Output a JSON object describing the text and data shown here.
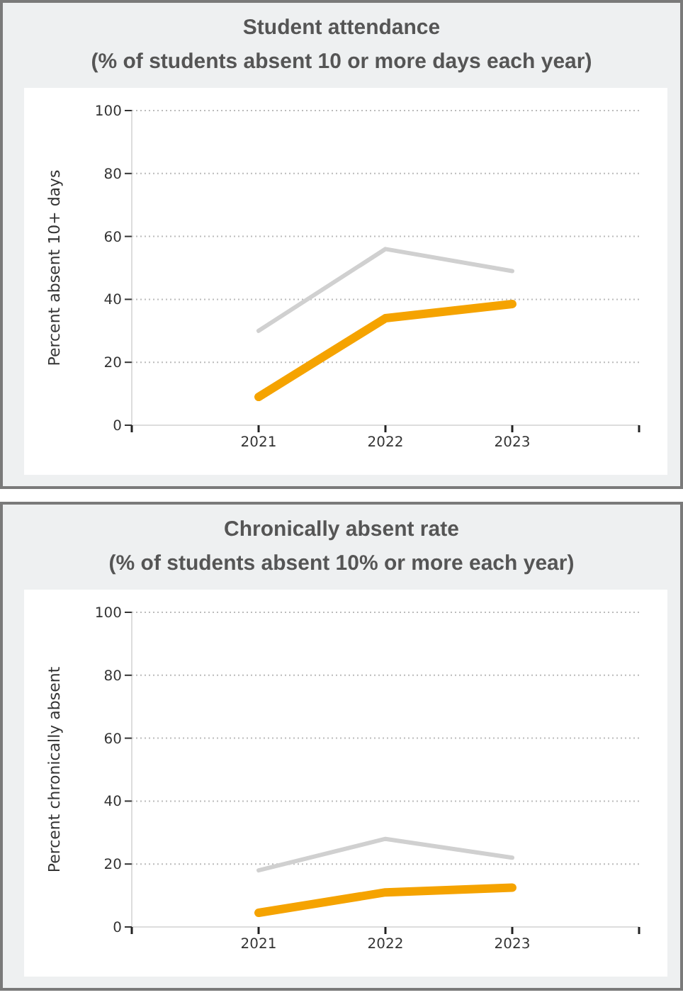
{
  "chart_data": [
    {
      "type": "line",
      "title": "Student attendance",
      "subtitle": "(% of students absent 10 or more days each year)",
      "ylabel": "Percent absent 10+ days",
      "x": [
        2021,
        2022,
        2023
      ],
      "series": [
        {
          "color": "#d0d0d0",
          "values": [
            30,
            56,
            49
          ]
        },
        {
          "color": "#f5a300",
          "values": [
            9,
            34,
            38.5
          ]
        }
      ],
      "xlim": [
        2020,
        2024
      ],
      "xticks": [
        2021,
        2022,
        2023
      ],
      "ylim": [
        0,
        100
      ],
      "yticks": [
        0,
        20,
        40,
        60,
        80,
        100
      ],
      "grid": "y",
      "marker": "none",
      "line_style": "solid"
    },
    {
      "type": "line",
      "title": "Chronically absent rate",
      "subtitle": "(% of students absent 10% or more each year)",
      "ylabel": "Percent chronically absent",
      "x": [
        2021,
        2022,
        2023
      ],
      "series": [
        {
          "color": "#d0d0d0",
          "values": [
            18,
            28,
            22
          ]
        },
        {
          "color": "#f5a300",
          "values": [
            4.5,
            11,
            12.5
          ]
        }
      ],
      "xlim": [
        2020,
        2024
      ],
      "xticks": [
        2021,
        2022,
        2023
      ],
      "ylim": [
        0,
        100
      ],
      "yticks": [
        0,
        20,
        40,
        60,
        80,
        100
      ],
      "grid": "y",
      "marker": "none",
      "line_style": "solid"
    }
  ]
}
